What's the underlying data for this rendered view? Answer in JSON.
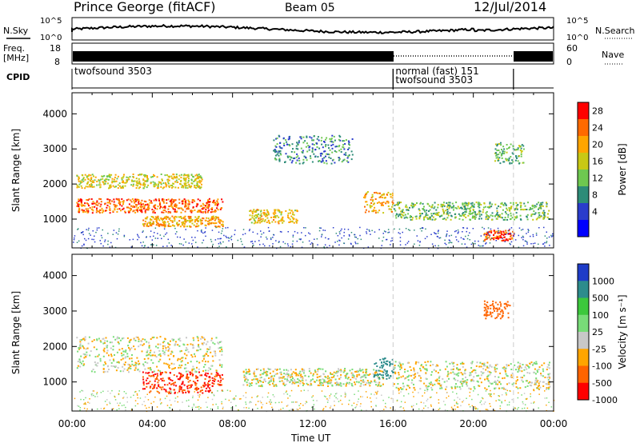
{
  "header": {
    "station": "Prince George (fitACF)",
    "beam": "Beam 05",
    "date": "12/Jul/2014"
  },
  "panels": {
    "nsky": {
      "label": "N.Sky",
      "ticks": [
        "10^5",
        "10^0"
      ]
    },
    "nsearch": {
      "label": "N.Search",
      "ticks": [
        "10^5",
        "10^0"
      ]
    },
    "freq": {
      "label": "Freq.",
      "unit": "[MHz]",
      "ticks": [
        "18",
        "8"
      ]
    },
    "nave": {
      "label": "Nave",
      "ticks": [
        "60",
        "0"
      ]
    },
    "cpid": {
      "label": "CPID",
      "segments": [
        {
          "start": 0,
          "end": 16,
          "name": "twofsound 3503",
          "row": 0
        },
        {
          "start": 16,
          "end": 22,
          "name": "normal (fast) 151",
          "row": 0
        },
        {
          "start": 16,
          "end": 22,
          "name": "twofsound 3503",
          "row": 1
        }
      ]
    }
  },
  "chart_data": [
    {
      "type": "heatmap",
      "panel": "power",
      "xlabel": "Time UT",
      "ylabel": "Slant Range [km]",
      "xlim": [
        0,
        24
      ],
      "ylim": [
        180,
        4600
      ],
      "yticks": [
        "1000",
        "2000",
        "3000",
        "4000"
      ],
      "colorbar": {
        "label": "Power [dB]",
        "ticks": [
          "28",
          "24",
          "20",
          "16",
          "12",
          "8",
          "4"
        ],
        "colors": [
          "#ff0000",
          "#ff6a00",
          "#ffa500",
          "#c8c814",
          "#6ec850",
          "#2d8c78",
          "#2a3ccc",
          "#0000ff"
        ]
      },
      "scatter_bands": [
        {
          "t0": 0.2,
          "t1": 7.5,
          "r0": 1200,
          "r1": 1600,
          "value": 26
        },
        {
          "t0": 0.2,
          "t1": 6.5,
          "r0": 1900,
          "r1": 2300,
          "value": 18
        },
        {
          "t0": 3.5,
          "t1": 7.5,
          "r0": 800,
          "r1": 1100,
          "value": 22
        },
        {
          "t0": 8.8,
          "t1": 11.2,
          "r0": 900,
          "r1": 1300,
          "value": 20
        },
        {
          "t0": 10.0,
          "t1": 14.0,
          "r0": 2600,
          "r1": 3400,
          "value": 10
        },
        {
          "t0": 14.5,
          "t1": 16.0,
          "r0": 1200,
          "r1": 1800,
          "value": 22
        },
        {
          "t0": 16.0,
          "t1": 23.8,
          "r0": 1000,
          "r1": 1500,
          "value": 14
        },
        {
          "t0": 20.5,
          "t1": 22.0,
          "r0": 400,
          "r1": 700,
          "value": 28
        },
        {
          "t0": 21.0,
          "t1": 22.5,
          "r0": 2600,
          "r1": 3200,
          "value": 14
        }
      ]
    },
    {
      "type": "heatmap",
      "panel": "velocity",
      "xlabel": "Time UT",
      "ylabel": "Slant Range [km]",
      "xlim": [
        0,
        24
      ],
      "ylim": [
        180,
        4600
      ],
      "yticks": [
        "1000",
        "2000",
        "3000",
        "4000"
      ],
      "xticks": [
        "00:00",
        "04:00",
        "08:00",
        "12:00",
        "16:00",
        "20:00",
        "00:00"
      ],
      "colorbar": {
        "label": "Velocity [m s⁻¹]",
        "ticks": [
          "1000",
          "500",
          "100",
          "25",
          "-25",
          "-100",
          "-500",
          "-1000"
        ],
        "colors": [
          "#1e3cc8",
          "#2d8c8c",
          "#3cc83c",
          "#78dc78",
          "#c8c8c8",
          "#ffa500",
          "#ff6400",
          "#ff0000"
        ]
      },
      "scatter_bands": [
        {
          "t0": 0.2,
          "t1": 7.5,
          "r0": 1300,
          "r1": 2300,
          "value": 0
        },
        {
          "t0": 3.5,
          "t1": 7.5,
          "r0": 700,
          "r1": 1300,
          "value": -500
        },
        {
          "t0": 8.5,
          "t1": 15.5,
          "r0": 900,
          "r1": 1400,
          "value": 0
        },
        {
          "t0": 15.0,
          "t1": 16.0,
          "r0": 1100,
          "r1": 1700,
          "value": 600
        },
        {
          "t0": 16.0,
          "t1": 23.8,
          "r0": 800,
          "r1": 1600,
          "value": 0
        },
        {
          "t0": 20.5,
          "t1": 21.8,
          "r0": 2800,
          "r1": 3300,
          "value": -200
        }
      ]
    }
  ],
  "colors": {
    "frame": "#000000",
    "divider": "#cccccc"
  }
}
